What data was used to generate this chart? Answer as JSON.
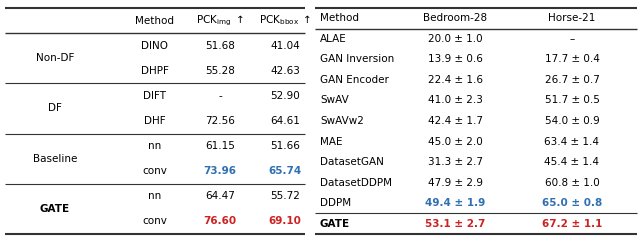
{
  "left_table": {
    "groups": [
      {
        "group_label": "Non-DF",
        "bold_label": false,
        "rows": [
          {
            "method": "DINO",
            "pck_img": "51.68",
            "pck_bbox": "41.04",
            "img_color": "black",
            "bbox_color": "black",
            "bold": false
          },
          {
            "method": "DHPF",
            "pck_img": "55.28",
            "pck_bbox": "42.63",
            "img_color": "black",
            "bbox_color": "black",
            "bold": false
          }
        ]
      },
      {
        "group_label": "DF",
        "bold_label": false,
        "rows": [
          {
            "method": "DIFT",
            "pck_img": "-",
            "pck_bbox": "52.90",
            "img_color": "black",
            "bbox_color": "black",
            "bold": false
          },
          {
            "method": "DHF",
            "pck_img": "72.56",
            "pck_bbox": "64.61",
            "img_color": "black",
            "bbox_color": "black",
            "bold": false
          }
        ]
      },
      {
        "group_label": "Baseline",
        "bold_label": false,
        "rows": [
          {
            "method": "nn",
            "pck_img": "61.15",
            "pck_bbox": "51.66",
            "img_color": "black",
            "bbox_color": "black",
            "bold": false
          },
          {
            "method": "conv",
            "pck_img": "73.96",
            "pck_bbox": "65.74",
            "img_color": "#3070b0",
            "bbox_color": "#3070b0",
            "bold": true
          }
        ]
      },
      {
        "group_label": "GATE",
        "bold_label": true,
        "rows": [
          {
            "method": "nn",
            "pck_img": "64.47",
            "pck_bbox": "55.72",
            "img_color": "black",
            "bbox_color": "black",
            "bold": false
          },
          {
            "method": "conv",
            "pck_img": "76.60",
            "pck_bbox": "69.10",
            "img_color": "#cc2222",
            "bbox_color": "#cc2222",
            "bold": true
          }
        ]
      }
    ]
  },
  "right_table": {
    "rows": [
      {
        "method": "ALAE",
        "bed": "20.0 ± 1.0",
        "horse": "–",
        "bed_color": "black",
        "horse_color": "black",
        "bold": false
      },
      {
        "method": "GAN Inversion",
        "bed": "13.9 ± 0.6",
        "horse": "17.7 ± 0.4",
        "bed_color": "black",
        "horse_color": "black",
        "bold": false
      },
      {
        "method": "GAN Encoder",
        "bed": "22.4 ± 1.6",
        "horse": "26.7 ± 0.7",
        "bed_color": "black",
        "horse_color": "black",
        "bold": false
      },
      {
        "method": "SwAV",
        "bed": "41.0 ± 2.3",
        "horse": "51.7 ± 0.5",
        "bed_color": "black",
        "horse_color": "black",
        "bold": false
      },
      {
        "method": "SwAVw2",
        "bed": "42.4 ± 1.7",
        "horse": "54.0 ± 0.9",
        "bed_color": "black",
        "horse_color": "black",
        "bold": false
      },
      {
        "method": "MAE",
        "bed": "45.0 ± 2.0",
        "horse": "63.4 ± 1.4",
        "bed_color": "black",
        "horse_color": "black",
        "bold": false
      },
      {
        "method": "DatasetGAN",
        "bed": "31.3 ± 2.7",
        "horse": "45.4 ± 1.4",
        "bed_color": "black",
        "horse_color": "black",
        "bold": false
      },
      {
        "method": "DatasetDDPM",
        "bed": "47.9 ± 2.9",
        "horse": "60.8 ± 1.0",
        "bed_color": "black",
        "horse_color": "black",
        "bold": false
      },
      {
        "method": "DDPM",
        "bed": "49.4 ± 1.9",
        "horse": "65.0 ± 0.8",
        "bed_color": "#3070b0",
        "horse_color": "#3070b0",
        "bold": true
      }
    ],
    "gate_row": {
      "method": "GATE",
      "bed": "53.1 ± 2.7",
      "horse": "67.2 ± 1.1",
      "bed_color": "#cc2222",
      "horse_color": "#cc2222",
      "bold": true
    }
  },
  "background_color": "#ffffff",
  "fs": 7.5
}
